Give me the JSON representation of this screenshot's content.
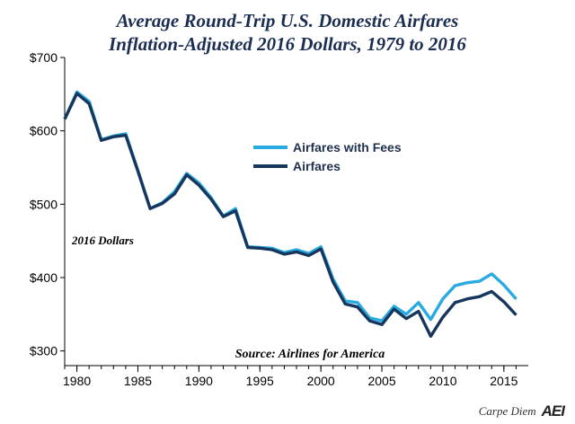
{
  "title_line1": "Average Round-Trip U.S. Domestic Airfares",
  "title_line2": "Inflation-Adjusted 2016 Dollars, 1979 to 2016",
  "brand": "Carpe Diem",
  "logo_text": "AEI",
  "colors": {
    "fees": "#29abe2",
    "airfares": "#17365d",
    "axis": "#000000",
    "title": "#1b2e52"
  },
  "chart_data": {
    "type": "line",
    "title": "Average Round-Trip U.S. Domestic Airfares",
    "subtitle": "Inflation-Adjusted 2016 Dollars, 1979 to 2016",
    "xlim": [
      1979,
      2017
    ],
    "ylim": [
      280,
      700
    ],
    "x_ticks": [
      1980,
      1985,
      1990,
      1995,
      2000,
      2005,
      2010,
      2015
    ],
    "y_ticks": [
      300,
      400,
      500,
      600,
      700
    ],
    "y_tick_labels": [
      "$300",
      "$400",
      "$500",
      "$600",
      "$700"
    ],
    "grid": false,
    "legend_position": "center-right",
    "annotations": [
      {
        "text": "2016 Dollars",
        "position": "left-middle"
      },
      {
        "text": "Source: Airlines for America",
        "position": "bottom-center"
      }
    ],
    "x": [
      1979,
      1980,
      1981,
      1982,
      1983,
      1984,
      1985,
      1986,
      1987,
      1988,
      1989,
      1990,
      1991,
      1992,
      1993,
      1994,
      1995,
      1996,
      1997,
      1998,
      1999,
      2000,
      2001,
      2002,
      2003,
      2004,
      2005,
      2006,
      2007,
      2008,
      2009,
      2010,
      2011,
      2012,
      2013,
      2014,
      2015,
      2016
    ],
    "series": [
      {
        "name": "Airfares with Fees",
        "color": "#29abe2",
        "values": [
          616,
          653,
          640,
          588,
          593,
          596,
          546,
          494,
          502,
          517,
          542,
          529,
          509,
          484,
          494,
          442,
          441,
          440,
          434,
          438,
          433,
          442,
          398,
          368,
          366,
          345,
          341,
          361,
          350,
          366,
          343,
          371,
          389,
          393,
          395,
          405,
          390,
          371
        ]
      },
      {
        "name": "Airfares",
        "color": "#17365d",
        "values": [
          616,
          651,
          637,
          587,
          592,
          594,
          545,
          494,
          501,
          514,
          540,
          526,
          507,
          483,
          491,
          441,
          440,
          438,
          432,
          435,
          430,
          439,
          394,
          364,
          360,
          341,
          336,
          357,
          344,
          354,
          320,
          346,
          366,
          371,
          374,
          381,
          367,
          349
        ]
      }
    ]
  }
}
